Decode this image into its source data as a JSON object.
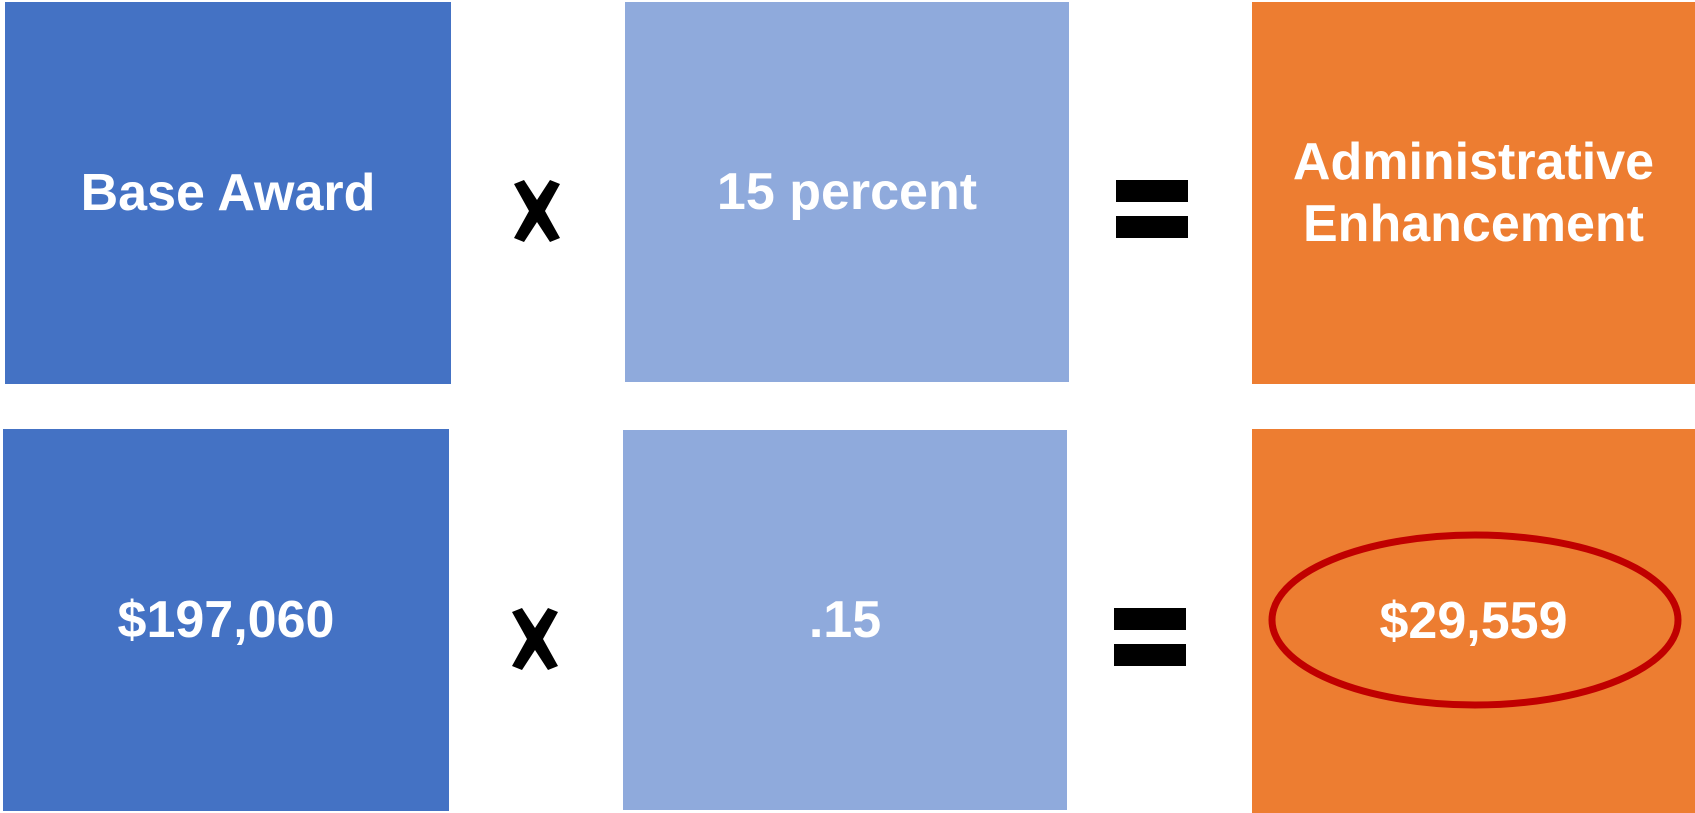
{
  "row1": {
    "base_award": "Base Award",
    "operator_times": "×",
    "percent": "15 percent",
    "operator_equals": "=",
    "result": "Administrative Enhancement"
  },
  "row2": {
    "base_value": "$197,060",
    "operator_times": "×",
    "rate_value": ".15",
    "operator_equals": "=",
    "result_value": "$29,559"
  },
  "colors": {
    "blue": "#4472c4",
    "light_blue": "#8faadc",
    "orange": "#ed7d31",
    "highlight": "#c00000",
    "operator": "#000000"
  },
  "icons": {
    "times": "multiply-icon",
    "equals": "equals-icon"
  }
}
